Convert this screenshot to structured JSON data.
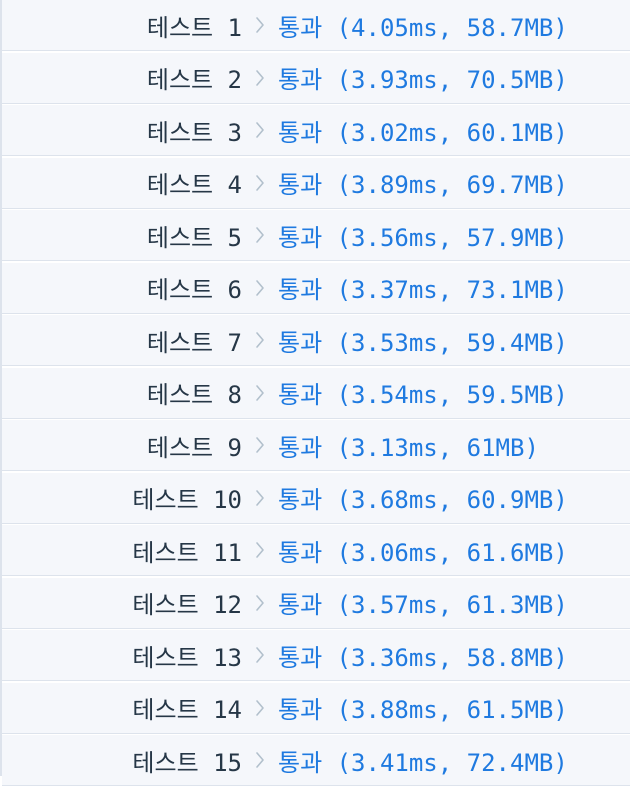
{
  "tests": [
    {
      "label": "테스트 1",
      "result": "통과 (4.05ms, 58.7MB)"
    },
    {
      "label": "테스트 2",
      "result": "통과 (3.93ms, 70.5MB)"
    },
    {
      "label": "테스트 3",
      "result": "통과 (3.02ms, 60.1MB)"
    },
    {
      "label": "테스트 4",
      "result": "통과 (3.89ms, 69.7MB)"
    },
    {
      "label": "테스트 5",
      "result": "통과 (3.56ms, 57.9MB)"
    },
    {
      "label": "테스트 6",
      "result": "통과 (3.37ms, 73.1MB)"
    },
    {
      "label": "테스트 7",
      "result": "통과 (3.53ms, 59.4MB)"
    },
    {
      "label": "테스트 8",
      "result": "통과 (3.54ms, 59.5MB)"
    },
    {
      "label": "테스트 9",
      "result": "통과 (3.13ms, 61MB)"
    },
    {
      "label": "테스트 10",
      "result": "통과 (3.68ms, 60.9MB)"
    },
    {
      "label": "테스트 11",
      "result": "통과 (3.06ms, 61.6MB)"
    },
    {
      "label": "테스트 12",
      "result": "통과 (3.57ms, 61.3MB)"
    },
    {
      "label": "테스트 13",
      "result": "통과 (3.36ms, 58.8MB)"
    },
    {
      "label": "테스트 14",
      "result": "통과 (3.88ms, 61.5MB)"
    },
    {
      "label": "테스트 15",
      "result": "통과 (3.41ms, 72.4MB)"
    }
  ],
  "colors": {
    "label": "#263747",
    "pass": "#1f7ae0",
    "arrow": "#b2c0cc",
    "row_bg": "#f5f7fb",
    "divider": "#dde3ec"
  },
  "icons": {
    "separator": "chevron-right-icon"
  }
}
